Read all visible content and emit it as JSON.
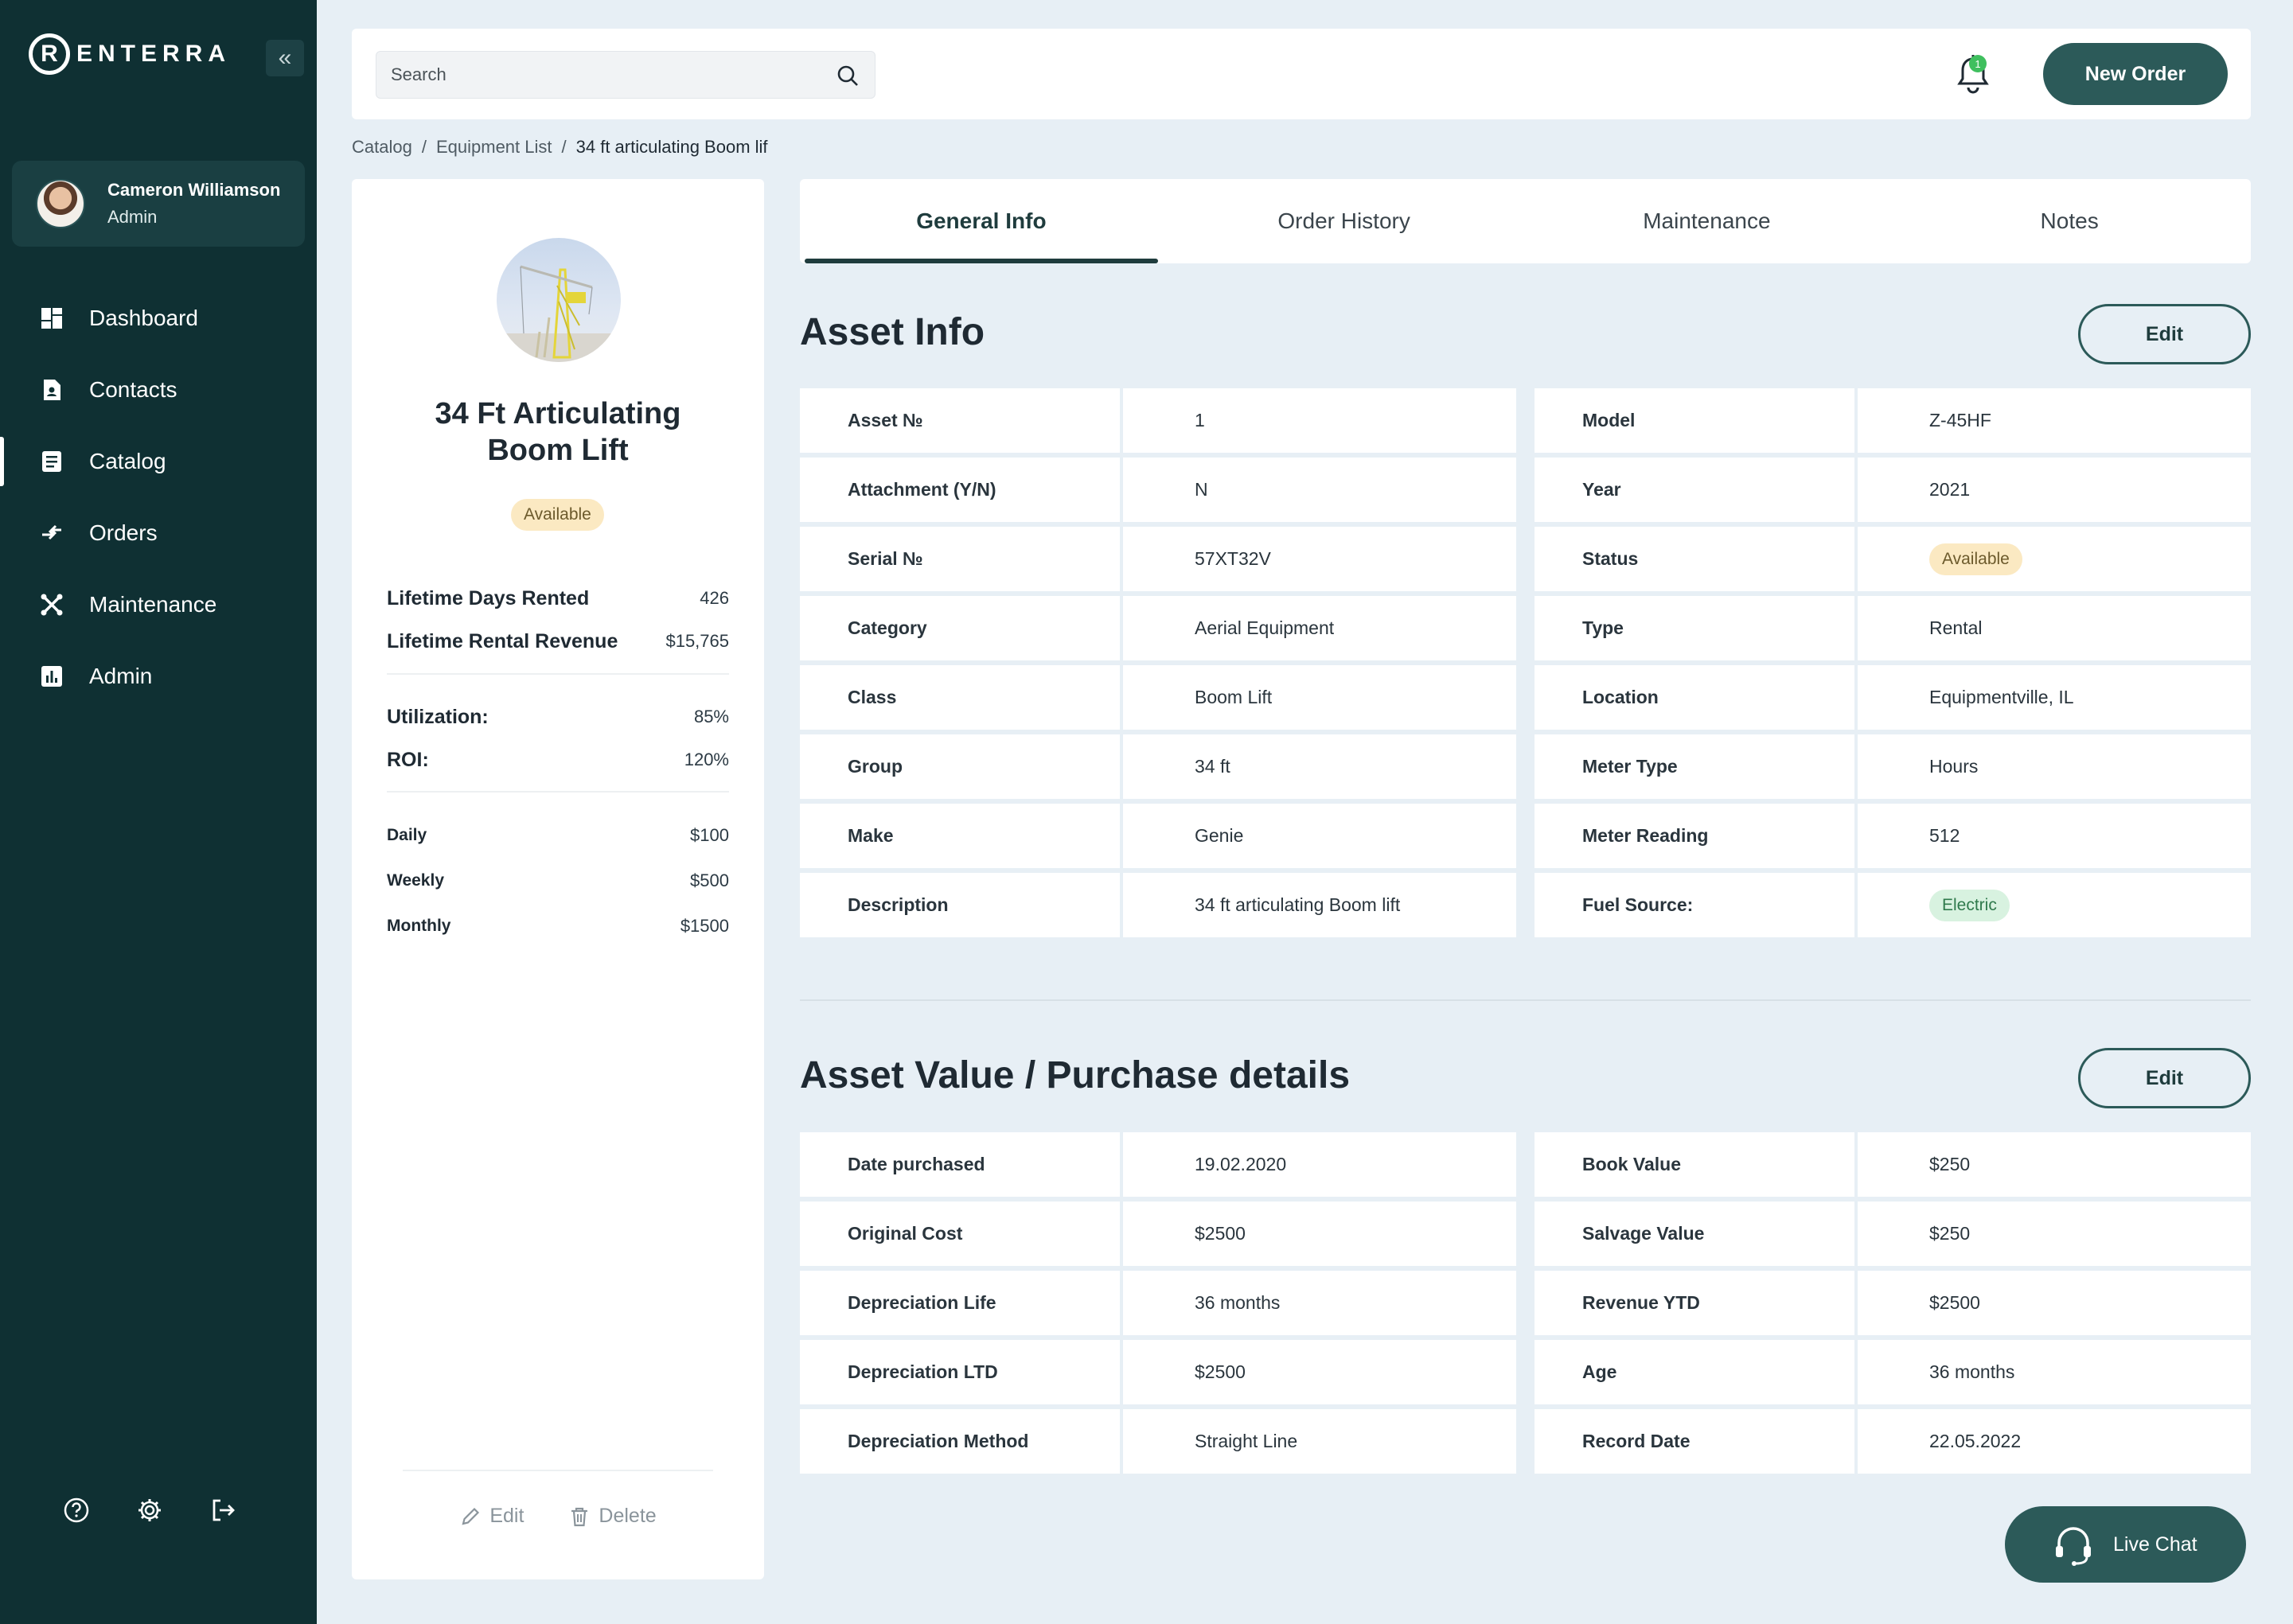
{
  "brand": {
    "logo_letter": "R",
    "name": "ENTERRA"
  },
  "sidebar": {
    "collapse_icon": "double-chevron-left-icon",
    "user": {
      "name": "Cameron Williamson",
      "role": "Admin"
    },
    "items": [
      {
        "label": "Dashboard",
        "icon": "dashboard-icon",
        "active": false
      },
      {
        "label": "Contacts",
        "icon": "contacts-icon",
        "active": false
      },
      {
        "label": "Catalog",
        "icon": "catalog-icon",
        "active": true
      },
      {
        "label": "Orders",
        "icon": "orders-icon",
        "active": false
      },
      {
        "label": "Maintenance",
        "icon": "maintenance-icon",
        "active": false
      },
      {
        "label": "Admin",
        "icon": "admin-icon",
        "active": false
      }
    ],
    "footer_icons": [
      "help-icon",
      "gear-icon",
      "logout-icon"
    ]
  },
  "topbar": {
    "search_placeholder": "Search",
    "notification_count": "1",
    "new_order_label": "New Order"
  },
  "breadcrumb": {
    "items": [
      "Catalog",
      "Equipment List",
      "34 ft articulating Boom lif"
    ],
    "separator": "/"
  },
  "asset_card": {
    "title_line1": "34 Ft Articulating",
    "title_line2": "Boom Lift",
    "status": "Available",
    "lifetime": [
      {
        "label": "Lifetime Days Rented",
        "value": "426"
      },
      {
        "label": "Lifetime Rental Revenue",
        "value": "$15,765"
      }
    ],
    "metrics": [
      {
        "label": "Utilization:",
        "value": "85%"
      },
      {
        "label": "ROI:",
        "value": "120%"
      }
    ],
    "rates": [
      {
        "label": "Daily",
        "value": "$100"
      },
      {
        "label": "Weekly",
        "value": "$500"
      },
      {
        "label": "Monthly",
        "value": "$1500"
      }
    ],
    "edit_label": "Edit",
    "delete_label": "Delete"
  },
  "tabs": [
    {
      "label": "General Info",
      "active": true
    },
    {
      "label": "Order History",
      "active": false
    },
    {
      "label": "Maintenance",
      "active": false
    },
    {
      "label": "Notes",
      "active": false
    }
  ],
  "asset_info": {
    "title": "Asset Info",
    "edit_label": "Edit",
    "left": [
      {
        "label": "Asset №",
        "value": "1"
      },
      {
        "label": "Attachment (Y/N)",
        "value": "N"
      },
      {
        "label": "Serial №",
        "value": "57XT32V"
      },
      {
        "label": "Category",
        "value": "Aerial Equipment"
      },
      {
        "label": "Class",
        "value": "Boom Lift"
      },
      {
        "label": "Group",
        "value": "34 ft"
      },
      {
        "label": "Make",
        "value": "Genie"
      },
      {
        "label": "Description",
        "value": "34 ft articulating Boom lift"
      }
    ],
    "right": [
      {
        "label": "Model",
        "value": "Z-45HF"
      },
      {
        "label": "Year",
        "value": "2021"
      },
      {
        "label": "Status",
        "value": "Available",
        "badge": "available"
      },
      {
        "label": "Type",
        "value": "Rental"
      },
      {
        "label": "Location",
        "value": "Equipmentville, IL"
      },
      {
        "label": "Meter Type",
        "value": "Hours"
      },
      {
        "label": "Meter Reading",
        "value": "512"
      },
      {
        "label": "Fuel Source:",
        "value": "Electric",
        "badge": "electric"
      }
    ]
  },
  "asset_value": {
    "title": "Asset Value / Purchase details",
    "edit_label": "Edit",
    "left": [
      {
        "label": "Date purchased",
        "value": "19.02.2020"
      },
      {
        "label": "Original Cost",
        "value": "$2500"
      },
      {
        "label": "Depreciation Life",
        "value": "36 months"
      },
      {
        "label": "Depreciation LTD",
        "value": "$2500"
      },
      {
        "label": "Depreciation Method",
        "value": "Straight Line"
      }
    ],
    "right": [
      {
        "label": "Book Value",
        "value": "$250"
      },
      {
        "label": "Salvage Value",
        "value": "$250"
      },
      {
        "label": "Revenue YTD",
        "value": "$2500"
      },
      {
        "label": "Age",
        "value": "36 months"
      },
      {
        "label": "Record Date",
        "value": "22.05.2022"
      }
    ]
  },
  "live_chat_label": "Live Chat",
  "colors": {
    "sidebar": "#0f3033",
    "accent": "#2c5a59",
    "background": "#e7eff5",
    "available_badge": "#fbe9c2",
    "electric_badge": "#d8f2e0"
  }
}
